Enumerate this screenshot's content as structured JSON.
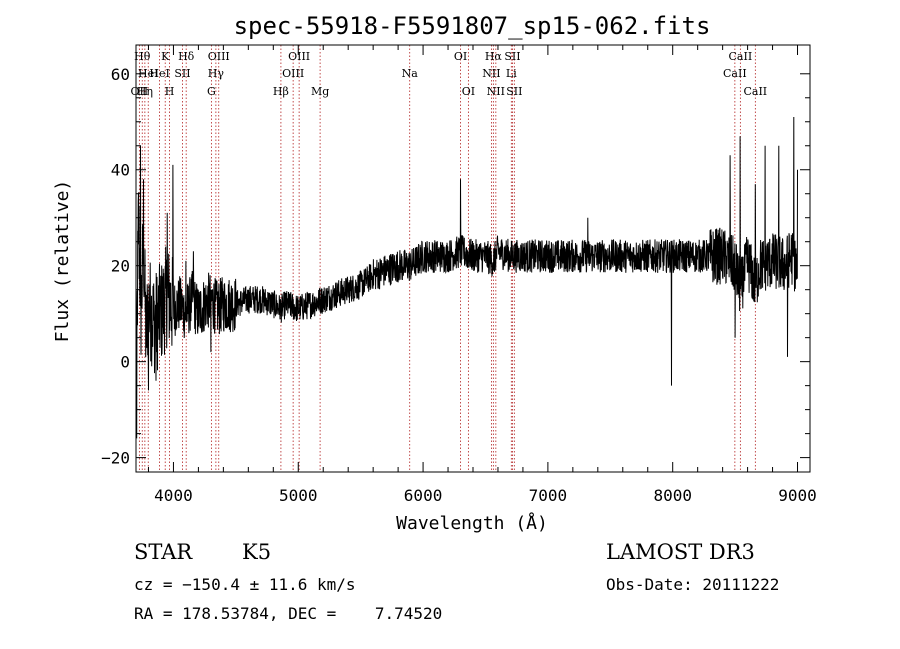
{
  "chart_data": {
    "type": "line",
    "title": "spec-55918-F5591807_sp15-062.fits",
    "xlabel": "Wavelength (Å)",
    "ylabel": "Flux (relative)",
    "xlim": [
      3700,
      9100
    ],
    "ylim": [
      -23,
      66
    ],
    "x_ticks": [
      4000,
      5000,
      6000,
      7000,
      8000,
      9000
    ],
    "y_ticks": [
      -20,
      0,
      20,
      40,
      60
    ],
    "x_tick_labels": [
      "4000",
      "5000",
      "6000",
      "7000",
      "8000",
      "9000"
    ],
    "y_tick_labels": [
      "−20",
      "0",
      "20",
      "40",
      "60"
    ],
    "series": [
      {
        "name": "spectrum",
        "x": [
          3700,
          3720,
          3740,
          3760,
          3780,
          3800,
          3850,
          3900,
          3950,
          4000,
          4050,
          4100,
          4150,
          4200,
          4250,
          4300,
          4350,
          4400,
          4500,
          4600,
          4700,
          4800,
          4861,
          4900,
          5000,
          5100,
          5200,
          5300,
          5400,
          5500,
          5600,
          5700,
          5800,
          5900,
          6000,
          6100,
          6200,
          6300,
          6400,
          6500,
          6563,
          6600,
          6700,
          6800,
          6900,
          7000,
          7100,
          7200,
          7300,
          7400,
          7500,
          7600,
          7700,
          7800,
          7900,
          8000,
          8100,
          8200,
          8300,
          8400,
          8500,
          8542,
          8600,
          8662,
          8700,
          8800,
          8900,
          8950,
          9000
        ],
        "y": [
          -8,
          30,
          10,
          25,
          5,
          12,
          8,
          10,
          14,
          11,
          12,
          10,
          13,
          10,
          12,
          13,
          11,
          12,
          12,
          13,
          13,
          12,
          11,
          12,
          11,
          12,
          13,
          14,
          15,
          16,
          18,
          19,
          20,
          20,
          22,
          22,
          22,
          23,
          22,
          22,
          21,
          23,
          22,
          22,
          22,
          22,
          22,
          22,
          22,
          22,
          22,
          22,
          22,
          22,
          22,
          22,
          22,
          22,
          22,
          22,
          20,
          15,
          21,
          16,
          20,
          21,
          20,
          22,
          19
        ]
      }
    ],
    "spikes": [
      {
        "x": 3705,
        "y": -16
      },
      {
        "x": 3735,
        "y": 45
      },
      {
        "x": 3760,
        "y": 38
      },
      {
        "x": 3800,
        "y": -6
      },
      {
        "x": 3860,
        "y": -4
      },
      {
        "x": 3950,
        "y": 31
      },
      {
        "x": 3995,
        "y": 41
      },
      {
        "x": 4100,
        "y": 21
      },
      {
        "x": 4160,
        "y": 23
      },
      {
        "x": 4300,
        "y": 2
      },
      {
        "x": 6300,
        "y": 38
      },
      {
        "x": 6563,
        "y": 19
      },
      {
        "x": 7320,
        "y": 30
      },
      {
        "x": 7990,
        "y": -5
      },
      {
        "x": 8460,
        "y": 43
      },
      {
        "x": 8500,
        "y": 5
      },
      {
        "x": 8540,
        "y": 47
      },
      {
        "x": 8662,
        "y": 37
      },
      {
        "x": 8740,
        "y": 45
      },
      {
        "x": 8850,
        "y": 45
      },
      {
        "x": 8920,
        "y": 1
      },
      {
        "x": 8970,
        "y": 51
      },
      {
        "x": 9000,
        "y": 40
      }
    ],
    "lines": [
      {
        "x": 3727,
        "label": "OII",
        "row": 3
      },
      {
        "x": 3750,
        "label": "Hθ",
        "row": 1
      },
      {
        "x": 3771,
        "label": "Hη",
        "row": 3
      },
      {
        "x": 3798,
        "label": "HeI",
        "row": 2
      },
      {
        "x": 3889,
        "label": "HeI",
        "row": 2
      },
      {
        "x": 3934,
        "label": "K",
        "row": 1
      },
      {
        "x": 3969,
        "label": "H",
        "row": 3
      },
      {
        "x": 4072,
        "label": "SII",
        "row": 2
      },
      {
        "x": 4102,
        "label": "Hδ",
        "row": 1
      },
      {
        "x": 4304,
        "label": "G",
        "row": 3
      },
      {
        "x": 4340,
        "label": "Hγ",
        "row": 2
      },
      {
        "x": 4363,
        "label": "OIII",
        "row": 1
      },
      {
        "x": 4861,
        "label": "Hβ",
        "row": 3
      },
      {
        "x": 4959,
        "label": "OIII",
        "row": 2
      },
      {
        "x": 5007,
        "label": "OIII",
        "row": 1
      },
      {
        "x": 5175,
        "label": "Mg",
        "row": 3
      },
      {
        "x": 5893,
        "label": "Na",
        "row": 2
      },
      {
        "x": 6300,
        "label": "OI",
        "row": 1
      },
      {
        "x": 6363,
        "label": "OI",
        "row": 3
      },
      {
        "x": 6548,
        "label": "NII",
        "row": 2
      },
      {
        "x": 6563,
        "label": "Hα",
        "row": 1
      },
      {
        "x": 6583,
        "label": "NII",
        "row": 3
      },
      {
        "x": 6707,
        "label": "Li",
        "row": 2
      },
      {
        "x": 6716,
        "label": "SII",
        "row": 1
      },
      {
        "x": 6731,
        "label": "SII",
        "row": 3
      },
      {
        "x": 8498,
        "label": "CaII",
        "row": 2
      },
      {
        "x": 8542,
        "label": "CaII",
        "row": 1
      },
      {
        "x": 8662,
        "label": "CaII",
        "row": 3
      }
    ]
  },
  "info": {
    "class_label": "STAR",
    "subclass": "K5",
    "survey": "LAMOST DR3",
    "cz": "cz = −150.4 ± 11.6 km/s",
    "obs_date": "Obs-Date: 20111222",
    "coords": "RA = 178.53784, DEC =    7.74520"
  },
  "colors": {
    "line_marker": "#b22222",
    "spectrum": "#000000",
    "axes": "#000000",
    "background": "#ffffff"
  }
}
